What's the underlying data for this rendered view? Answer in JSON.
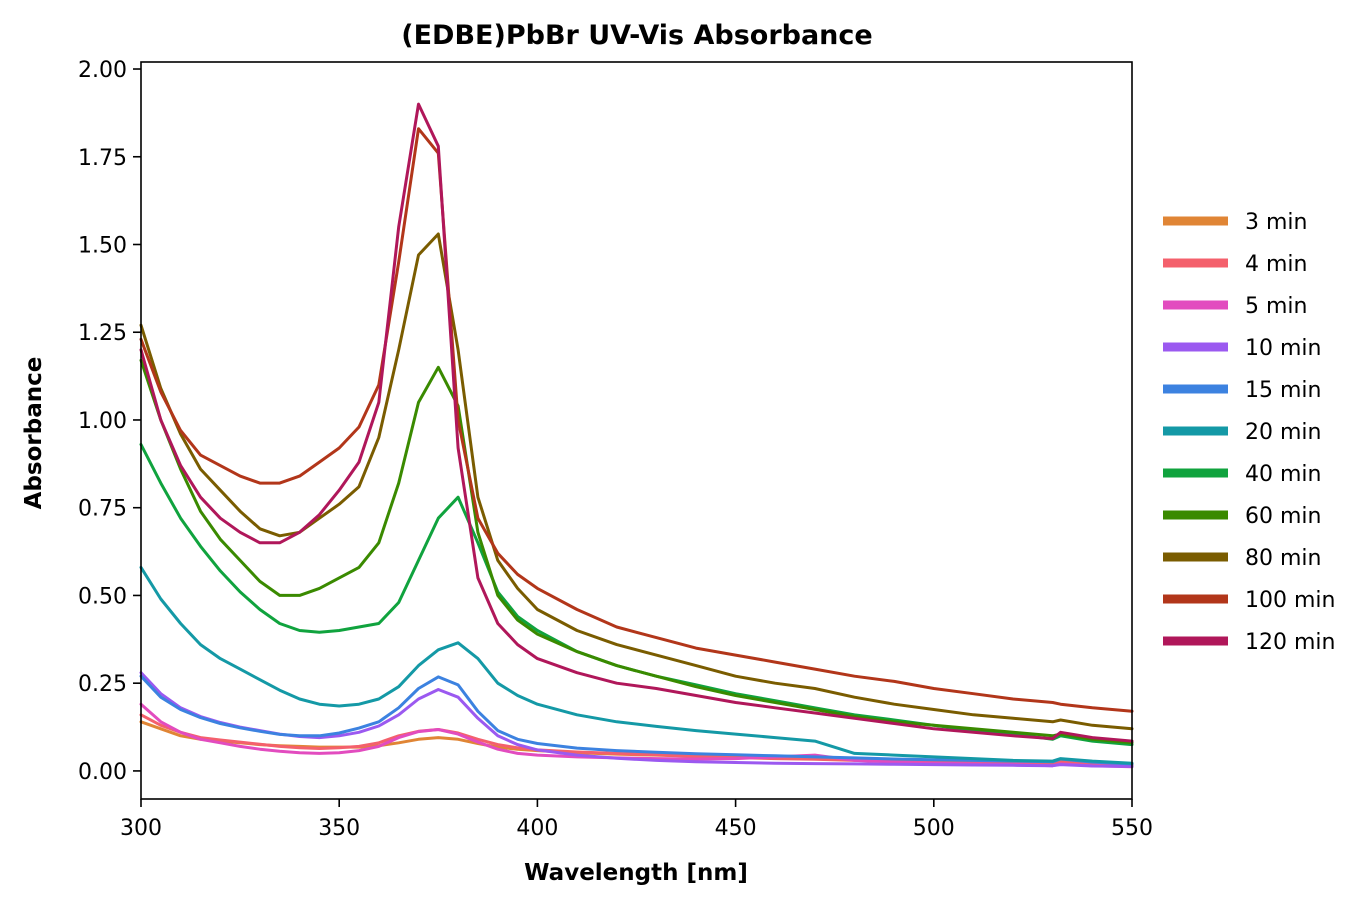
{
  "chart_data": {
    "type": "line",
    "title": "(EDBE)PbBr UV-Vis Absorbance",
    "xlabel": "Wavelength [nm]",
    "ylabel": "Absorbance",
    "xlim": [
      300,
      550
    ],
    "ylim": [
      -0.08,
      2.02
    ],
    "xticks": [
      300,
      350,
      400,
      450,
      500,
      550
    ],
    "yticks": [
      0.0,
      0.25,
      0.5,
      0.75,
      1.0,
      1.25,
      1.5,
      1.75,
      2.0
    ],
    "xtick_labels": [
      "300",
      "350",
      "400",
      "450",
      "500",
      "550"
    ],
    "ytick_labels": [
      "0.00",
      "0.25",
      "0.50",
      "0.75",
      "1.00",
      "1.25",
      "1.50",
      "1.75",
      "2.00"
    ],
    "grid": false,
    "legend_position": "outside-right",
    "x": [
      300,
      305,
      310,
      315,
      320,
      325,
      330,
      335,
      340,
      345,
      350,
      355,
      360,
      365,
      370,
      375,
      380,
      385,
      390,
      395,
      400,
      410,
      420,
      430,
      440,
      450,
      460,
      470,
      480,
      490,
      500,
      510,
      520,
      530,
      532,
      540,
      550
    ],
    "series": [
      {
        "name": "3 min",
        "color": "#e08535",
        "values": [
          0.14,
          0.12,
          0.1,
          0.09,
          0.085,
          0.08,
          0.075,
          0.072,
          0.07,
          0.068,
          0.068,
          0.068,
          0.072,
          0.08,
          0.09,
          0.095,
          0.09,
          0.078,
          0.068,
          0.062,
          0.058,
          0.052,
          0.048,
          0.045,
          0.042,
          0.04,
          0.038,
          0.036,
          0.034,
          0.032,
          0.03,
          0.028,
          0.026,
          0.024,
          0.03,
          0.024,
          0.02
        ]
      },
      {
        "name": "4 min",
        "color": "#f4606c",
        "values": [
          0.16,
          0.13,
          0.11,
          0.095,
          0.088,
          0.082,
          0.076,
          0.07,
          0.066,
          0.064,
          0.066,
          0.07,
          0.08,
          0.1,
          0.113,
          0.118,
          0.108,
          0.09,
          0.075,
          0.066,
          0.06,
          0.054,
          0.05,
          0.046,
          0.042,
          0.038,
          0.035,
          0.033,
          0.03,
          0.028,
          0.026,
          0.024,
          0.022,
          0.02,
          0.025,
          0.02,
          0.016
        ]
      },
      {
        "name": "5 min",
        "color": "#e24cbf",
        "values": [
          0.19,
          0.14,
          0.11,
          0.09,
          0.08,
          0.07,
          0.062,
          0.056,
          0.052,
          0.05,
          0.052,
          0.058,
          0.07,
          0.095,
          0.112,
          0.118,
          0.105,
          0.082,
          0.062,
          0.05,
          0.045,
          0.04,
          0.037,
          0.035,
          0.034,
          0.035,
          0.04,
          0.045,
          0.03,
          0.025,
          0.022,
          0.02,
          0.018,
          0.015,
          0.02,
          0.015,
          0.012
        ]
      },
      {
        "name": "10 min",
        "color": "#9b59f0",
        "values": [
          0.28,
          0.22,
          0.18,
          0.155,
          0.138,
          0.125,
          0.115,
          0.105,
          0.098,
          0.095,
          0.1,
          0.11,
          0.128,
          0.16,
          0.205,
          0.232,
          0.21,
          0.15,
          0.1,
          0.075,
          0.06,
          0.045,
          0.036,
          0.03,
          0.026,
          0.024,
          0.022,
          0.021,
          0.02,
          0.019,
          0.018,
          0.017,
          0.016,
          0.015,
          0.018,
          0.014,
          0.013
        ]
      },
      {
        "name": "15 min",
        "color": "#3c82e0",
        "values": [
          0.27,
          0.21,
          0.175,
          0.152,
          0.135,
          0.123,
          0.113,
          0.104,
          0.1,
          0.1,
          0.108,
          0.122,
          0.14,
          0.18,
          0.235,
          0.268,
          0.245,
          0.17,
          0.115,
          0.09,
          0.078,
          0.065,
          0.058,
          0.053,
          0.049,
          0.046,
          0.043,
          0.04,
          0.037,
          0.034,
          0.032,
          0.03,
          0.028,
          0.026,
          0.034,
          0.025,
          0.02
        ]
      },
      {
        "name": "20 min",
        "color": "#1499a6",
        "values": [
          0.58,
          0.49,
          0.42,
          0.36,
          0.32,
          0.29,
          0.26,
          0.23,
          0.205,
          0.19,
          0.185,
          0.19,
          0.205,
          0.24,
          0.3,
          0.345,
          0.365,
          0.32,
          0.25,
          0.215,
          0.19,
          0.16,
          0.14,
          0.127,
          0.115,
          0.105,
          0.095,
          0.085,
          0.05,
          0.045,
          0.04,
          0.035,
          0.03,
          0.028,
          0.035,
          0.028,
          0.022
        ]
      },
      {
        "name": "40 min",
        "color": "#10a33e",
        "values": [
          0.93,
          0.82,
          0.72,
          0.64,
          0.57,
          0.51,
          0.46,
          0.42,
          0.4,
          0.395,
          0.4,
          0.41,
          0.42,
          0.48,
          0.6,
          0.72,
          0.78,
          0.65,
          0.51,
          0.44,
          0.4,
          0.34,
          0.3,
          0.27,
          0.245,
          0.22,
          0.2,
          0.18,
          0.16,
          0.145,
          0.13,
          0.115,
          0.105,
          0.09,
          0.1,
          0.085,
          0.075
        ]
      },
      {
        "name": "60 min",
        "color": "#3a8a00",
        "values": [
          1.17,
          1.0,
          0.86,
          0.74,
          0.66,
          0.6,
          0.54,
          0.5,
          0.5,
          0.52,
          0.55,
          0.58,
          0.65,
          0.82,
          1.05,
          1.15,
          1.04,
          0.68,
          0.5,
          0.43,
          0.39,
          0.34,
          0.3,
          0.27,
          0.24,
          0.215,
          0.195,
          0.175,
          0.155,
          0.14,
          0.13,
          0.12,
          0.11,
          0.1,
          0.105,
          0.09,
          0.08
        ]
      },
      {
        "name": "80 min",
        "color": "#7a5c00",
        "values": [
          1.27,
          1.09,
          0.96,
          0.86,
          0.8,
          0.74,
          0.69,
          0.67,
          0.68,
          0.72,
          0.76,
          0.81,
          0.95,
          1.2,
          1.47,
          1.53,
          1.2,
          0.78,
          0.6,
          0.52,
          0.46,
          0.4,
          0.36,
          0.33,
          0.3,
          0.27,
          0.25,
          0.235,
          0.21,
          0.19,
          0.175,
          0.16,
          0.15,
          0.14,
          0.145,
          0.13,
          0.12
        ]
      },
      {
        "name": "100 min",
        "color": "#b2361a",
        "values": [
          1.23,
          1.08,
          0.97,
          0.9,
          0.87,
          0.84,
          0.82,
          0.82,
          0.84,
          0.88,
          0.92,
          0.98,
          1.1,
          1.45,
          1.83,
          1.76,
          1.0,
          0.72,
          0.62,
          0.56,
          0.52,
          0.46,
          0.41,
          0.38,
          0.35,
          0.33,
          0.31,
          0.29,
          0.27,
          0.255,
          0.235,
          0.22,
          0.205,
          0.195,
          0.19,
          0.18,
          0.17
        ]
      },
      {
        "name": "120 min",
        "color": "#b0175a",
        "values": [
          1.2,
          1.0,
          0.87,
          0.78,
          0.72,
          0.68,
          0.65,
          0.65,
          0.68,
          0.73,
          0.8,
          0.88,
          1.05,
          1.55,
          1.9,
          1.78,
          0.92,
          0.55,
          0.42,
          0.36,
          0.32,
          0.28,
          0.25,
          0.235,
          0.215,
          0.195,
          0.18,
          0.165,
          0.15,
          0.135,
          0.12,
          0.11,
          0.1,
          0.092,
          0.11,
          0.095,
          0.085
        ]
      }
    ]
  }
}
